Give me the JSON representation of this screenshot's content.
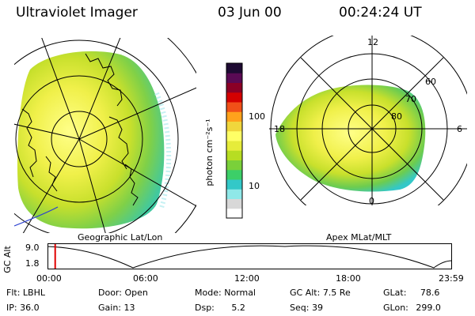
{
  "header": {
    "instrument": "Ultraviolet Imager",
    "date": "03 Jun 00",
    "time": "00:24:24 UT"
  },
  "left_panel": {
    "label": "Geographic Lat/Lon"
  },
  "right_panel": {
    "label": "Apex MLat/MLT",
    "mlt_labels": {
      "top": "12",
      "left": "18",
      "right": "6",
      "bottom": "0"
    },
    "lat_labels": [
      "60",
      "70",
      "80"
    ]
  },
  "colorbar": {
    "unit_label": "photon cm⁻²s⁻¹",
    "ticks": [
      "100",
      "10"
    ],
    "colors": [
      "#ffffff",
      "#d8d8d8",
      "#8fe8e8",
      "#33c8c8",
      "#3ccf68",
      "#7ad03a",
      "#b7dd22",
      "#e6ec3a",
      "#ffff66",
      "#f0d63c",
      "#ffa21c",
      "#f05018",
      "#d40000",
      "#8b0026",
      "#5a0a54",
      "#1e0a32"
    ]
  },
  "timeline": {
    "axis_label": "GC Alt",
    "y_ticks": [
      "9.0",
      "1.8"
    ],
    "x_ticks": [
      "00:00",
      "06:00",
      "12:00",
      "18:00",
      "23:59"
    ],
    "current_time_fraction": 0.017
  },
  "info": {
    "row1": [
      {
        "label": "Flt:",
        "value": "LBHL"
      },
      {
        "label": "Door:",
        "value": "Open"
      },
      {
        "label": "Mode:",
        "value": "Normal"
      },
      {
        "label": "GC Alt:",
        "value": "7.5 Re"
      },
      {
        "label": "GLat:",
        "value": "78.6"
      }
    ],
    "row2": [
      {
        "label": "IP:",
        "value": "36.0"
      },
      {
        "label": "Gain:",
        "value": "13"
      },
      {
        "label": "Dsp:",
        "value": "5.2"
      },
      {
        "label": "Seq:",
        "value": "39"
      },
      {
        "label": "GLon:",
        "value": "299.0"
      }
    ]
  }
}
